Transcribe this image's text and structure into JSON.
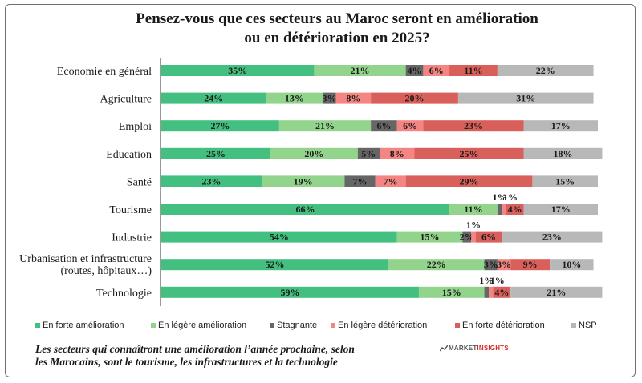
{
  "title_line1": "Pensez-vous que ces secteurs au Maroc seront en amélioration",
  "title_line2": "ou en détérioration en 2025?",
  "colors": {
    "forte_amelioration": "#43bf80",
    "legere_amelioration": "#93d48c",
    "stagnante": "#666666",
    "legere_deterioration": "#f48583",
    "forte_deterioration": "#d95f5a",
    "nsp": "#b8b8b8"
  },
  "chart_data": {
    "type": "bar",
    "orientation": "horizontal",
    "stacked": true,
    "xlim": [
      0,
      100
    ],
    "grid": false,
    "legend_position": "bottom",
    "categories": [
      "Economie en général",
      "Agriculture",
      "Emploi",
      "Education",
      "Santé",
      "Tourisme",
      "Industrie",
      "Urbanisation et infrastructure (routes, hôpitaux…)",
      "Technologie"
    ],
    "category_lines": [
      [
        "Economie en général"
      ],
      [
        "Agriculture"
      ],
      [
        "Emploi"
      ],
      [
        "Education"
      ],
      [
        "Santé"
      ],
      [
        "Tourisme"
      ],
      [
        "Industrie"
      ],
      [
        "Urbanisation et infrastructure",
        "(routes, hôpitaux…)"
      ],
      [
        "Technologie"
      ]
    ],
    "series": [
      {
        "name": "En forte amélioration",
        "values": [
          35,
          24,
          27,
          25,
          23,
          66,
          54,
          52,
          59
        ]
      },
      {
        "name": "En légère amélioration",
        "values": [
          21,
          13,
          21,
          20,
          19,
          11,
          15,
          22,
          15
        ]
      },
      {
        "name": "Stagnante",
        "values": [
          4,
          3,
          6,
          5,
          7,
          1,
          2,
          3,
          1
        ]
      },
      {
        "name": "En légère détérioration",
        "values": [
          6,
          8,
          6,
          8,
          7,
          1,
          1,
          3,
          1
        ]
      },
      {
        "name": "En forte détérioration",
        "values": [
          11,
          20,
          23,
          25,
          29,
          4,
          6,
          9,
          4
        ]
      },
      {
        "name": "NSP",
        "values": [
          22,
          31,
          17,
          18,
          15,
          17,
          23,
          10,
          21
        ]
      }
    ]
  },
  "legend": [
    {
      "label": "En forte amélioration"
    },
    {
      "label": "En légère amélioration"
    },
    {
      "label": "Stagnante"
    },
    {
      "label": "En légère détérioration"
    },
    {
      "label": "En forte détérioration"
    },
    {
      "label": "NSP"
    }
  ],
  "footnote_line1": "Les secteurs qui connaîtront une amélioration l’année prochaine, selon",
  "footnote_line2": "les Marocains, sont le tourisme, les infrastructures et la technologie",
  "brand": {
    "part1": "MARKET",
    "part2": "INSIGHTS"
  }
}
